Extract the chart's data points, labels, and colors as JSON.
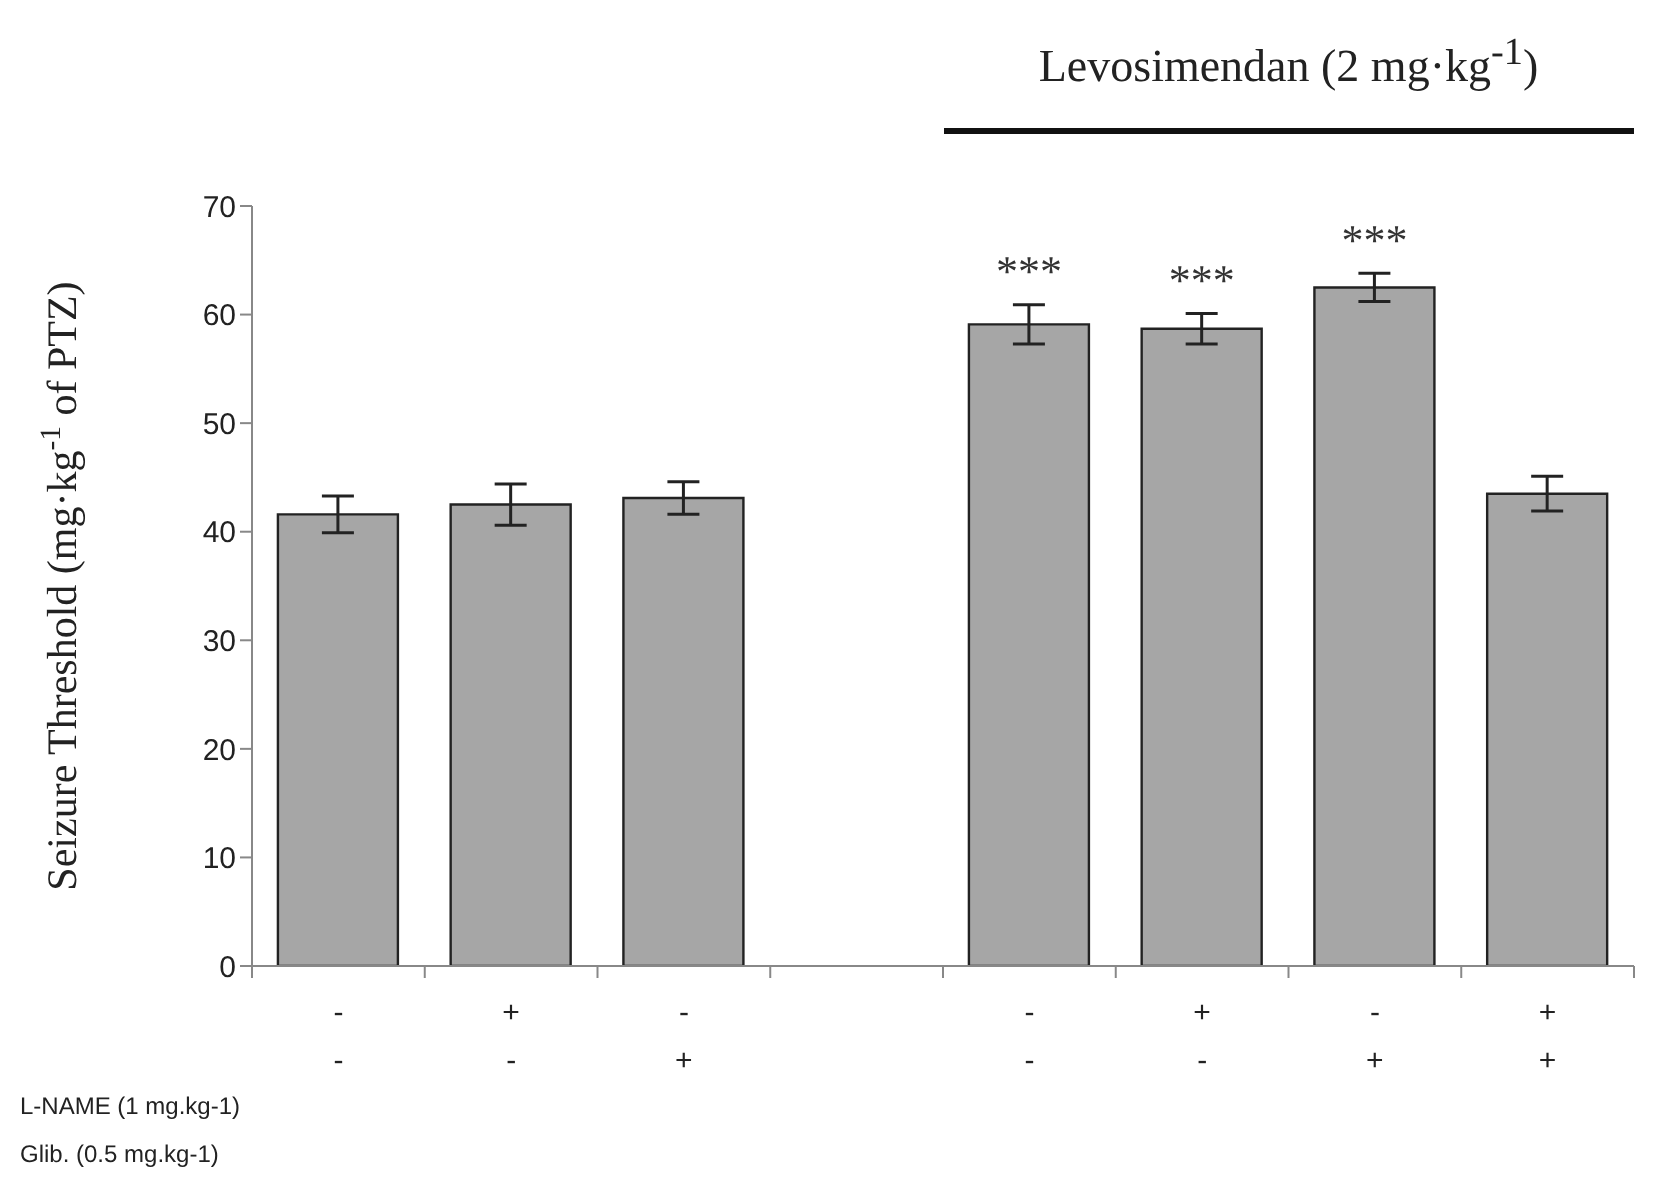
{
  "chart_data": {
    "type": "bar",
    "ylabel": "Seizure Threshold (mg·kg$^{-1}$ of PTZ)",
    "categories": [
      "-\n-",
      "+\n-",
      "-\n+",
      null,
      "-\n-",
      "+\n-",
      "-\n+",
      "+\n+"
    ],
    "values": [
      41.6,
      42.5,
      43.1,
      null,
      59.1,
      58.7,
      62.5,
      43.5
    ],
    "errors": [
      1.7,
      1.9,
      1.5,
      null,
      1.8,
      1.4,
      1.3,
      1.6
    ],
    "value_labels": [
      null,
      null,
      null,
      null,
      "***",
      "***",
      "***",
      null
    ],
    "color": "#a6a6a6",
    "ylim": [
      0,
      70
    ],
    "yticks": [
      0,
      10,
      20,
      30,
      40,
      50,
      60,
      70
    ],
    "grid": false,
    "legend": false,
    "annotations": [
      "L-NAME (1 mg.kg-1)",
      "Glib. (0.5 mg.kg-1)",
      "Levosimendan (2 mg·kg$^{-1}$)"
    ]
  }
}
